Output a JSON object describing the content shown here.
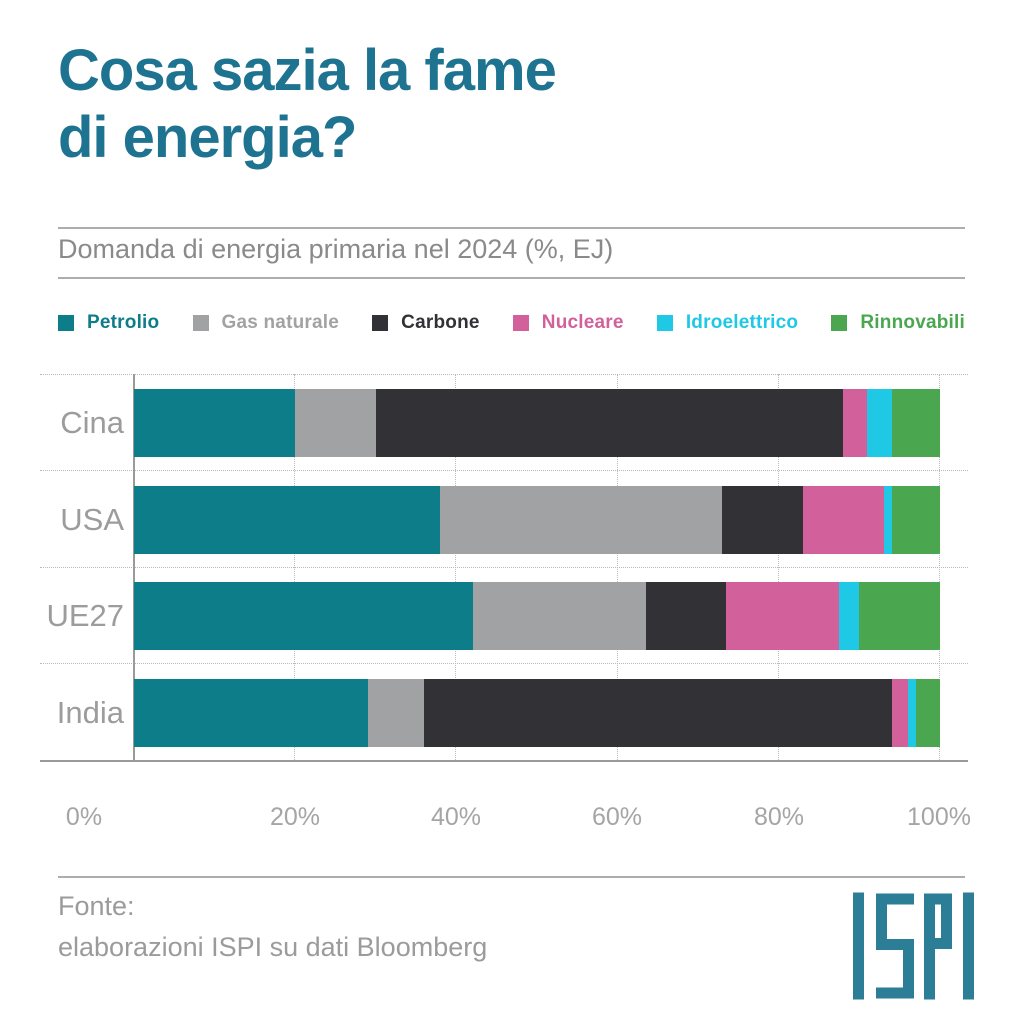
{
  "page": {
    "title": "Cosa sazia la fame\ndi energia?",
    "subtitle": "Domanda di energia primaria nel 2024 (%, EJ)",
    "source": "Fonte:\nelaborazioni ISPI su dati Bloomberg",
    "logo_text": "ISPI"
  },
  "colors": {
    "title": "#1E7391",
    "subtitle": "#8A8A8A",
    "row_label": "#9C9C9C",
    "tick": "#A5A5A5",
    "divider": "#ADADAD",
    "axis": "#9A9A9A",
    "grid": "#B9B9B9",
    "logo": "#2C7E96",
    "background": "#FFFFFF"
  },
  "chart_data": {
    "type": "bar",
    "orientation": "horizontal-stacked",
    "unit": "%",
    "title": "Domanda di energia primaria nel 2024 (%, EJ)",
    "categories": [
      "Cina",
      "USA",
      "UE27",
      "India"
    ],
    "series": [
      {
        "name": "Petrolio",
        "color": "#0E7D8A",
        "values": [
          20,
          38,
          42,
          29
        ]
      },
      {
        "name": "Gas naturale",
        "color": "#A1A2A4",
        "values": [
          10,
          35,
          21.5,
          7
        ]
      },
      {
        "name": "Carbone",
        "color": "#323135",
        "values": [
          58,
          10,
          10,
          58
        ]
      },
      {
        "name": "Nucleare",
        "color": "#D2619B",
        "values": [
          3,
          10,
          14,
          2
        ]
      },
      {
        "name": "Idroelettrico",
        "color": "#1FC8E5",
        "values": [
          3,
          1,
          2.5,
          1
        ]
      },
      {
        "name": "Rinnovabili",
        "color": "#4AA64F",
        "values": [
          6,
          6,
          10,
          3
        ]
      }
    ],
    "x_ticks": [
      "0%",
      "20%",
      "40%",
      "60%",
      "80%",
      "100%"
    ],
    "xlim": [
      0,
      100
    ],
    "legend_position": "top",
    "grid": "dotted vertical gridlines every 20%"
  }
}
